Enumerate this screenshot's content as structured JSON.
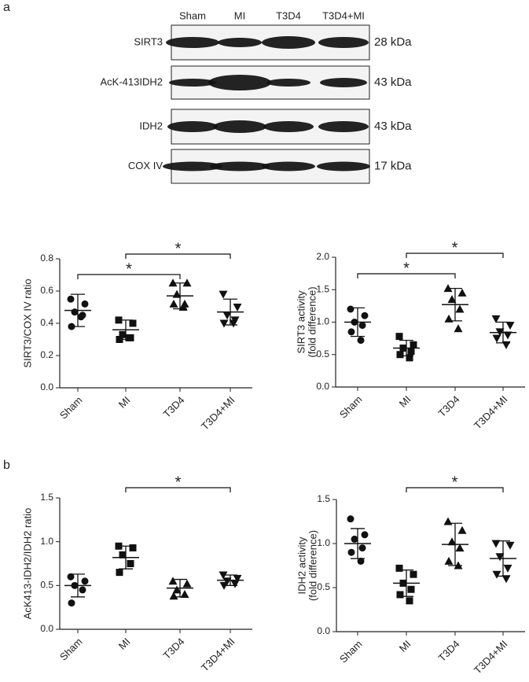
{
  "panel_labels": [
    "a",
    "b"
  ],
  "blot": {
    "lanes": [
      "Sham",
      "MI",
      "T3D4",
      "T3D4+MI"
    ],
    "rows": [
      {
        "label": "SIRT3",
        "size": "28 kDa"
      },
      {
        "label": "AcK-413IDH2",
        "size": "43 kDa"
      },
      {
        "label": "IDH2",
        "size": "43 kDa"
      },
      {
        "label": "COX IV",
        "size": "17 kDa"
      }
    ]
  },
  "chart_data": [
    {
      "type": "dot",
      "ylabel": [
        "SIRT3/COX IV ratio"
      ],
      "categories": [
        "Sham",
        "MI",
        "T3D4",
        "T3D4+MI"
      ],
      "markers": [
        "circle",
        "square",
        "triangle",
        "triangle-down"
      ],
      "points": [
        [
          0.55,
          0.52,
          0.47,
          0.45,
          0.38,
          0.44
        ],
        [
          0.42,
          0.4,
          0.33,
          0.31,
          0.3,
          0.31
        ],
        [
          0.65,
          0.65,
          0.58,
          0.52,
          0.52,
          0.5
        ],
        [
          0.58,
          0.5,
          0.45,
          0.42,
          0.4,
          0.4
        ]
      ],
      "means": [
        0.48,
        0.36,
        0.57,
        0.47
      ],
      "sd": [
        0.1,
        0.06,
        0.08,
        0.08
      ],
      "ylim": [
        0,
        0.8
      ],
      "yticks": [
        {
          "value": 0,
          "label": "0.0"
        },
        0.2,
        0.4,
        0.6,
        0.8
      ],
      "significance": [
        {
          "between": [
            0,
            2
          ],
          "label": "*"
        },
        {
          "between": [
            1,
            3
          ],
          "label": "*"
        }
      ]
    },
    {
      "type": "dot",
      "ylabel": [
        "SIRT3 activity",
        "(fold difference)"
      ],
      "categories": [
        "Sham",
        "MI",
        "T3D4",
        "T3D4+MI"
      ],
      "markers": [
        "circle",
        "square",
        "triangle",
        "triangle-down"
      ],
      "points": [
        [
          1.2,
          1.1,
          1.0,
          0.95,
          0.85,
          0.72
        ],
        [
          0.78,
          0.65,
          0.6,
          0.55,
          0.5,
          0.45
        ],
        [
          1.52,
          1.45,
          1.35,
          1.2,
          1.05,
          0.9
        ],
        [
          1.05,
          0.95,
          0.85,
          0.8,
          0.75,
          0.65
        ]
      ],
      "means": [
        1.0,
        0.6,
        1.27,
        0.84
      ],
      "sd": [
        0.22,
        0.12,
        0.25,
        0.16
      ],
      "ylim": [
        0,
        2
      ],
      "yticks": [
        {
          "value": 0,
          "label": "0.0"
        },
        0.5,
        {
          "value": 1,
          "label": "1.0"
        },
        1.5,
        {
          "value": 2,
          "label": "2.0"
        }
      ],
      "significance": [
        {
          "between": [
            0,
            2
          ],
          "label": "*"
        },
        {
          "between": [
            1,
            3
          ],
          "label": "*"
        }
      ]
    },
    {
      "type": "dot",
      "ylabel": [
        "AcK413-IDH2/IDH2 ratio"
      ],
      "categories": [
        "Sham",
        "MI",
        "T3D4",
        "T3D4+MI"
      ],
      "markers": [
        "circle",
        "square",
        "triangle",
        "triangle-down"
      ],
      "points": [
        [
          0.6,
          0.55,
          0.5,
          0.45,
          0.3
        ],
        [
          0.95,
          0.93,
          0.85,
          0.75,
          0.65
        ],
        [
          0.55,
          0.52,
          0.45,
          0.4,
          0.38
        ],
        [
          0.62,
          0.58,
          0.55,
          0.52,
          0.5
        ]
      ],
      "means": [
        0.5,
        0.82,
        0.47,
        0.56
      ],
      "sd": [
        0.13,
        0.13,
        0.1,
        0.06
      ],
      "ylim": [
        0,
        1.5
      ],
      "yticks": [
        {
          "value": 0,
          "label": "0.0"
        },
        0.5,
        {
          "value": 1,
          "label": "1.0"
        },
        1.5
      ],
      "significance": [
        {
          "between": [
            1,
            3
          ],
          "label": "*"
        }
      ]
    },
    {
      "type": "dot",
      "ylabel": [
        "IDH2 activity",
        "(fold difference)"
      ],
      "categories": [
        "Sham",
        "MI",
        "T3D4",
        "T3D4+MI"
      ],
      "markers": [
        "circle",
        "square",
        "triangle",
        "triangle-down"
      ],
      "points": [
        [
          1.28,
          1.1,
          1.05,
          0.95,
          0.9,
          0.8
        ],
        [
          0.72,
          0.65,
          0.55,
          0.48,
          0.42,
          0.35
        ],
        [
          1.25,
          1.15,
          1.02,
          0.95,
          0.8,
          0.75
        ],
        [
          1.0,
          0.98,
          0.85,
          0.72,
          0.65,
          0.6
        ]
      ],
      "means": [
        1.0,
        0.55,
        0.99,
        0.83
      ],
      "sd": [
        0.17,
        0.15,
        0.24,
        0.2
      ],
      "ylim": [
        0,
        1.5
      ],
      "yticks": [
        {
          "value": 0,
          "label": "0.0"
        },
        0.5,
        {
          "value": 1,
          "label": "1.0"
        },
        1.5
      ],
      "significance": [
        {
          "between": [
            1,
            3
          ],
          "label": "*"
        }
      ]
    }
  ]
}
